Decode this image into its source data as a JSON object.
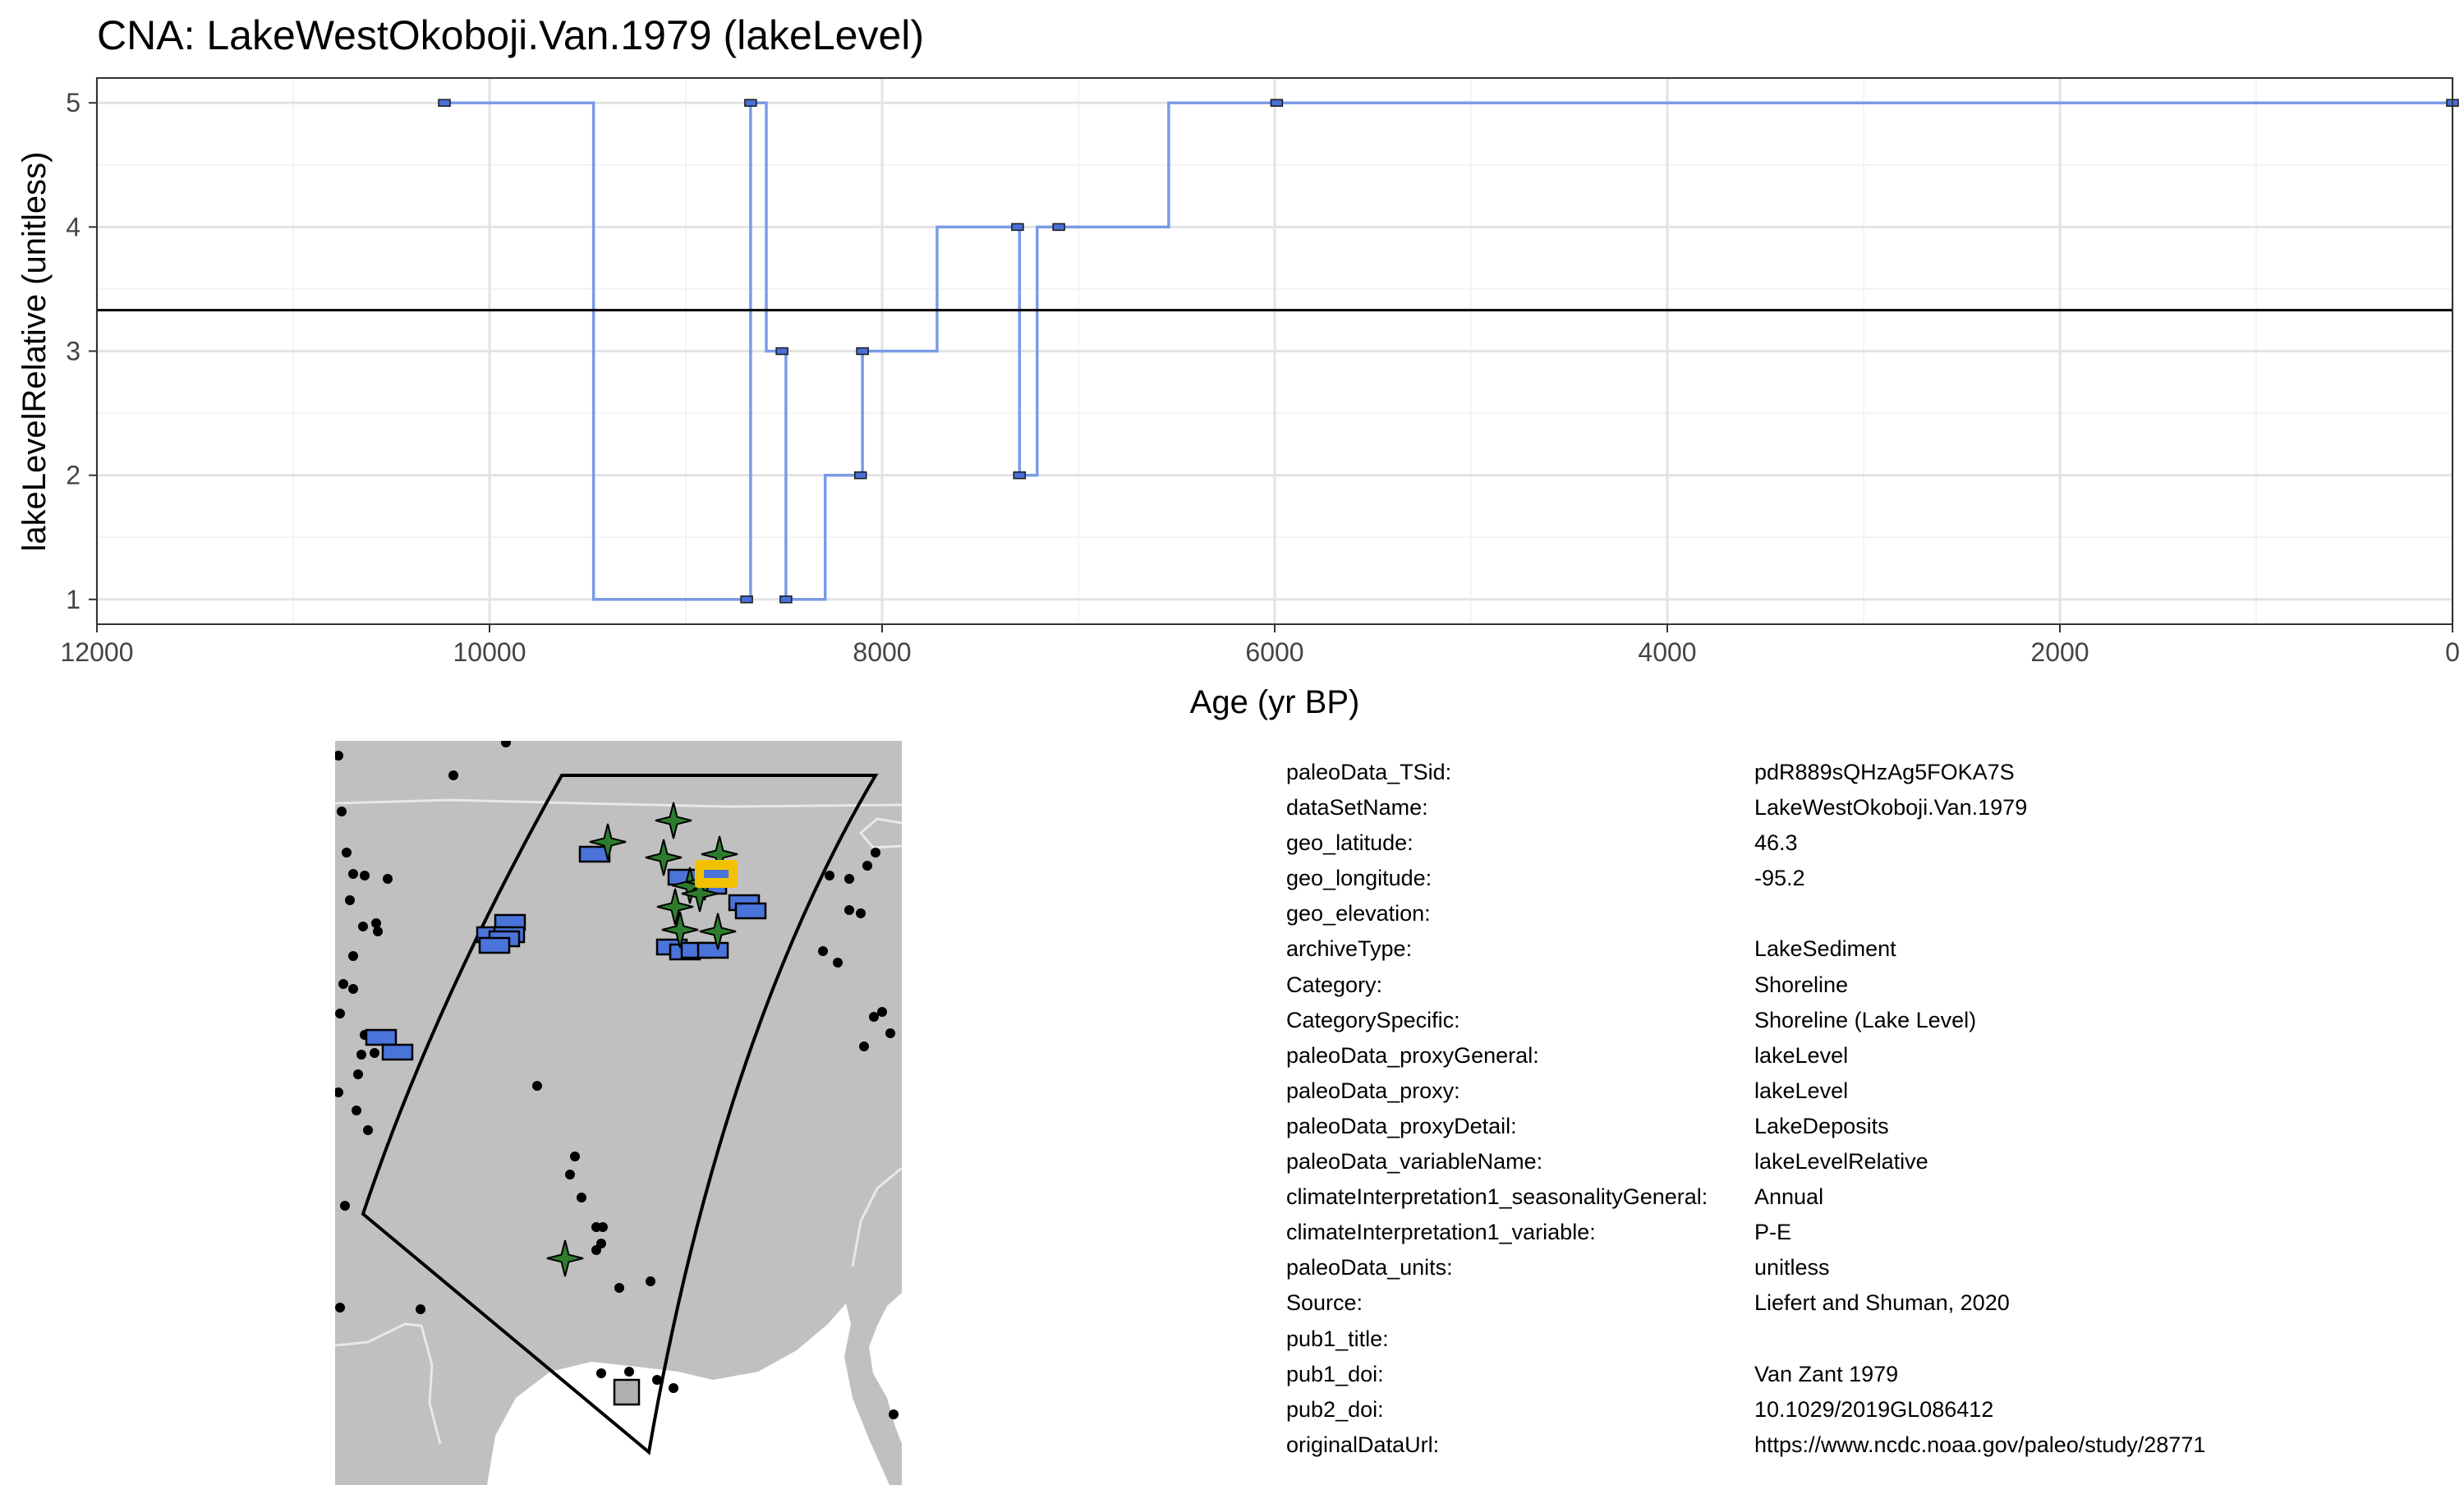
{
  "chart_data": {
    "type": "line",
    "step": true,
    "title": "CNA: LakeWestOkoboji.Van.1979 (lakeLevel)",
    "xlabel": "Age (yr BP)",
    "ylabel": "lakeLevelRelative (unitless)",
    "xlim": [
      12000,
      0
    ],
    "ylim": [
      0.8,
      5.2
    ],
    "x_reversed": true,
    "xticks": [
      12000,
      10000,
      8000,
      6000,
      4000,
      2000,
      0
    ],
    "yticks": [
      1,
      2,
      3,
      4,
      5
    ],
    "grid": true,
    "line_color": "#7b9be6",
    "marker_color": "#4a6fd6",
    "mean_line": 3.33,
    "series": [
      {
        "x": [
          10230,
          9470,
          8690,
          8670,
          8590,
          8510,
          8490,
          8290,
          8110,
          8100,
          7720,
          7310,
          7300,
          7210,
          7100,
          6540,
          5990,
          0
        ],
        "values": [
          5,
          1,
          1,
          5,
          3,
          3,
          1,
          2,
          2,
          3,
          4,
          4,
          2,
          4,
          4,
          5,
          5,
          5
        ]
      }
    ],
    "markers": {
      "x": [
        10230,
        8690,
        8670,
        8510,
        8490,
        8110,
        8100,
        7310,
        7300,
        7100,
        5990,
        0
      ],
      "values": [
        5,
        1,
        5,
        3,
        1,
        2,
        3,
        4,
        2,
        4,
        5,
        5
      ]
    }
  },
  "map": {
    "land_color": "#c0c0c0",
    "region_outline_color": "#000000",
    "square_color": "#4a74d9",
    "star_color": "#2e7d2e",
    "highlight_color": "#f2c200",
    "dot_color": "#000000"
  },
  "metadata": [
    {
      "key": "paleoData_TSid:",
      "value": "pdR889sQHzAg5FOKA7S"
    },
    {
      "key": "dataSetName:",
      "value": "LakeWestOkoboji.Van.1979"
    },
    {
      "key": "geo_latitude:",
      "value": "46.3"
    },
    {
      "key": "geo_longitude:",
      "value": "-95.2"
    },
    {
      "key": "geo_elevation:",
      "value": ""
    },
    {
      "key": "archiveType:",
      "value": "LakeSediment"
    },
    {
      "key": "Category:",
      "value": "Shoreline"
    },
    {
      "key": "CategorySpecific:",
      "value": "Shoreline (Lake Level)"
    },
    {
      "key": "paleoData_proxyGeneral:",
      "value": "lakeLevel"
    },
    {
      "key": "paleoData_proxy:",
      "value": "lakeLevel"
    },
    {
      "key": "paleoData_proxyDetail:",
      "value": "LakeDeposits"
    },
    {
      "key": "paleoData_variableName:",
      "value": "lakeLevelRelative"
    },
    {
      "key": "climateInterpretation1_seasonalityGeneral:",
      "value": "Annual"
    },
    {
      "key": "climateInterpretation1_variable:",
      "value": "P-E"
    },
    {
      "key": "paleoData_units:",
      "value": "unitless"
    },
    {
      "key": "Source:",
      "value": "Liefert and Shuman, 2020"
    },
    {
      "key": "pub1_title:",
      "value": ""
    },
    {
      "key": "pub1_doi:",
      "value": "Van Zant 1979"
    },
    {
      "key": "pub2_doi:",
      "value": "10.1029/2019GL086412"
    },
    {
      "key": "originalDataUrl:",
      "value": "https://www.ncdc.noaa.gov/paleo/study/28771"
    }
  ]
}
